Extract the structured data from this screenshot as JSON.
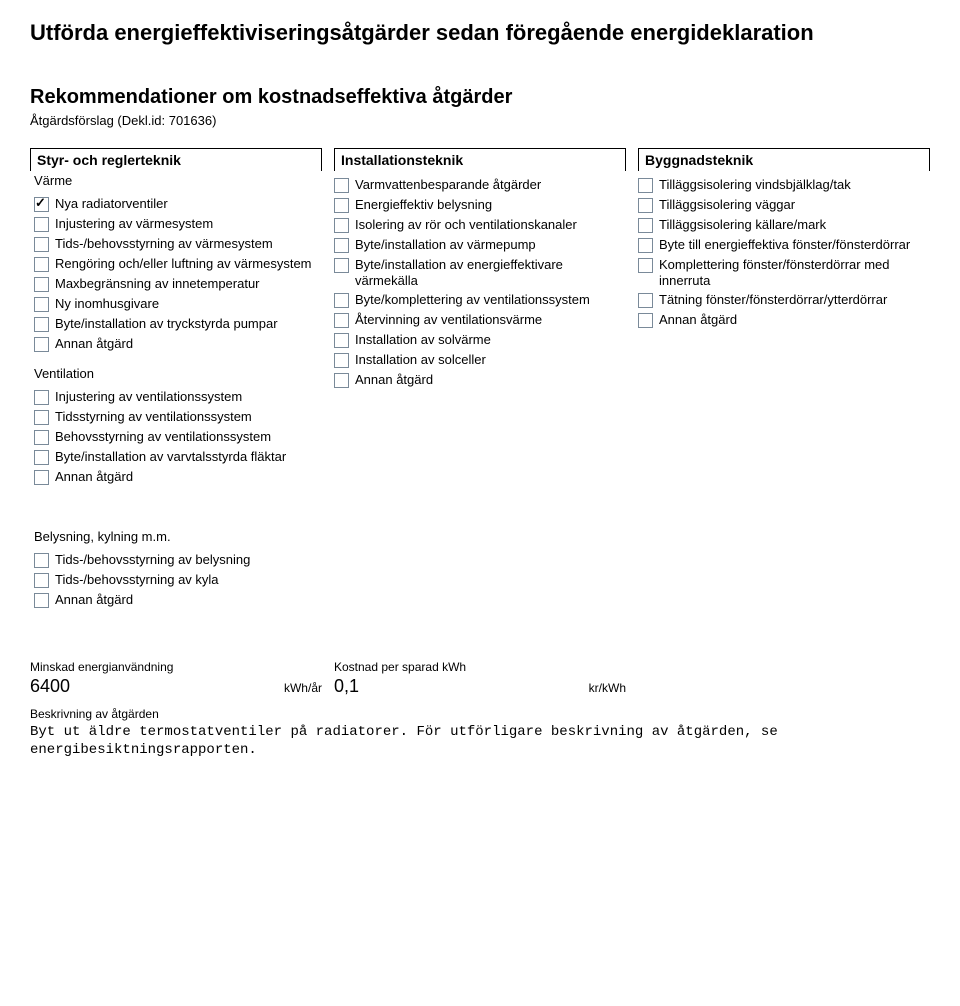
{
  "title": "Utförda energieffektiviseringsåtgärder sedan föregående energideklaration",
  "rec_heading": "Rekommendationer om kostnadseffektiva åtgärder",
  "decl": "Åtgärdsförslag (Dekl.id: 701636)",
  "col1_head": "Styr- och reglerteknik",
  "col2_head": "Installationsteknik",
  "col3_head": "Byggnadsteknik",
  "varme_label": "Värme",
  "varme_items": [
    {
      "label": "Nya radiatorventiler",
      "checked": true
    },
    {
      "label": "Injustering av värmesystem",
      "checked": false
    },
    {
      "label": "Tids-/behovsstyrning av värmesystem",
      "checked": false
    },
    {
      "label": "Rengöring och/eller luftning av värmesystem",
      "checked": false
    },
    {
      "label": "Maxbegränsning av innetemperatur",
      "checked": false
    },
    {
      "label": "Ny inomhusgivare",
      "checked": false
    },
    {
      "label": "Byte/installation av tryckstyrda pumpar",
      "checked": false
    },
    {
      "label": "Annan åtgärd",
      "checked": false
    }
  ],
  "vent_label": "Ventilation",
  "vent_items": [
    {
      "label": "Injustering av ventilationssystem",
      "checked": false
    },
    {
      "label": "Tidsstyrning av ventilationssystem",
      "checked": false
    },
    {
      "label": "Behovsstyrning av ventilationssystem",
      "checked": false
    },
    {
      "label": "Byte/installation av varvtalsstyrda fläktar",
      "checked": false
    },
    {
      "label": "Annan åtgärd",
      "checked": false
    }
  ],
  "bely_label": "Belysning, kylning m.m.",
  "bely_items": [
    {
      "label": "Tids-/behovsstyrning av belysning",
      "checked": false
    },
    {
      "label": "Tids-/behovsstyrning av kyla",
      "checked": false
    },
    {
      "label": "Annan åtgärd",
      "checked": false
    }
  ],
  "install_items": [
    {
      "label": "Varmvattenbesparande åtgärder",
      "checked": false
    },
    {
      "label": "Energieffektiv belysning",
      "checked": false
    },
    {
      "label": "Isolering av rör och ventilationskanaler",
      "checked": false
    },
    {
      "label": "Byte/installation av värmepump",
      "checked": false
    },
    {
      "label": "Byte/installation av energieffektivare värmekälla",
      "checked": false
    },
    {
      "label": "Byte/komplettering av ventilationssystem",
      "checked": false
    },
    {
      "label": "Återvinning av ventilationsvärme",
      "checked": false
    },
    {
      "label": "Installation av solvärme",
      "checked": false
    },
    {
      "label": "Installation av solceller",
      "checked": false
    },
    {
      "label": "Annan åtgärd",
      "checked": false
    }
  ],
  "bygg_items": [
    {
      "label": "Tilläggsisolering vindsbjälklag/tak",
      "checked": false
    },
    {
      "label": "Tilläggsisolering väggar",
      "checked": false
    },
    {
      "label": "Tilläggsisolering källare/mark",
      "checked": false
    },
    {
      "label": "Byte till energieffektiva fönster/fönsterdörrar",
      "checked": false
    },
    {
      "label": "Komplettering fönster/fönsterdörrar med innerruta",
      "checked": false
    },
    {
      "label": "Tätning fönster/fönsterdörrar/ytterdörrar",
      "checked": false
    },
    {
      "label": "Annan åtgärd",
      "checked": false
    }
  ],
  "minskad_label": "Minskad energianvändning",
  "minskad_value": "6400",
  "minskad_unit": "kWh/år",
  "kostnad_label": "Kostnad per sparad kWh",
  "kostnad_value": "0,1",
  "kostnad_unit": "kr/kWh",
  "beskriv_label": "Beskrivning av åtgärden",
  "beskriv_text": "Byt ut äldre termostatventiler på radiatorer. För utförligare beskrivning av åtgärden, se energibesiktningsrapporten."
}
